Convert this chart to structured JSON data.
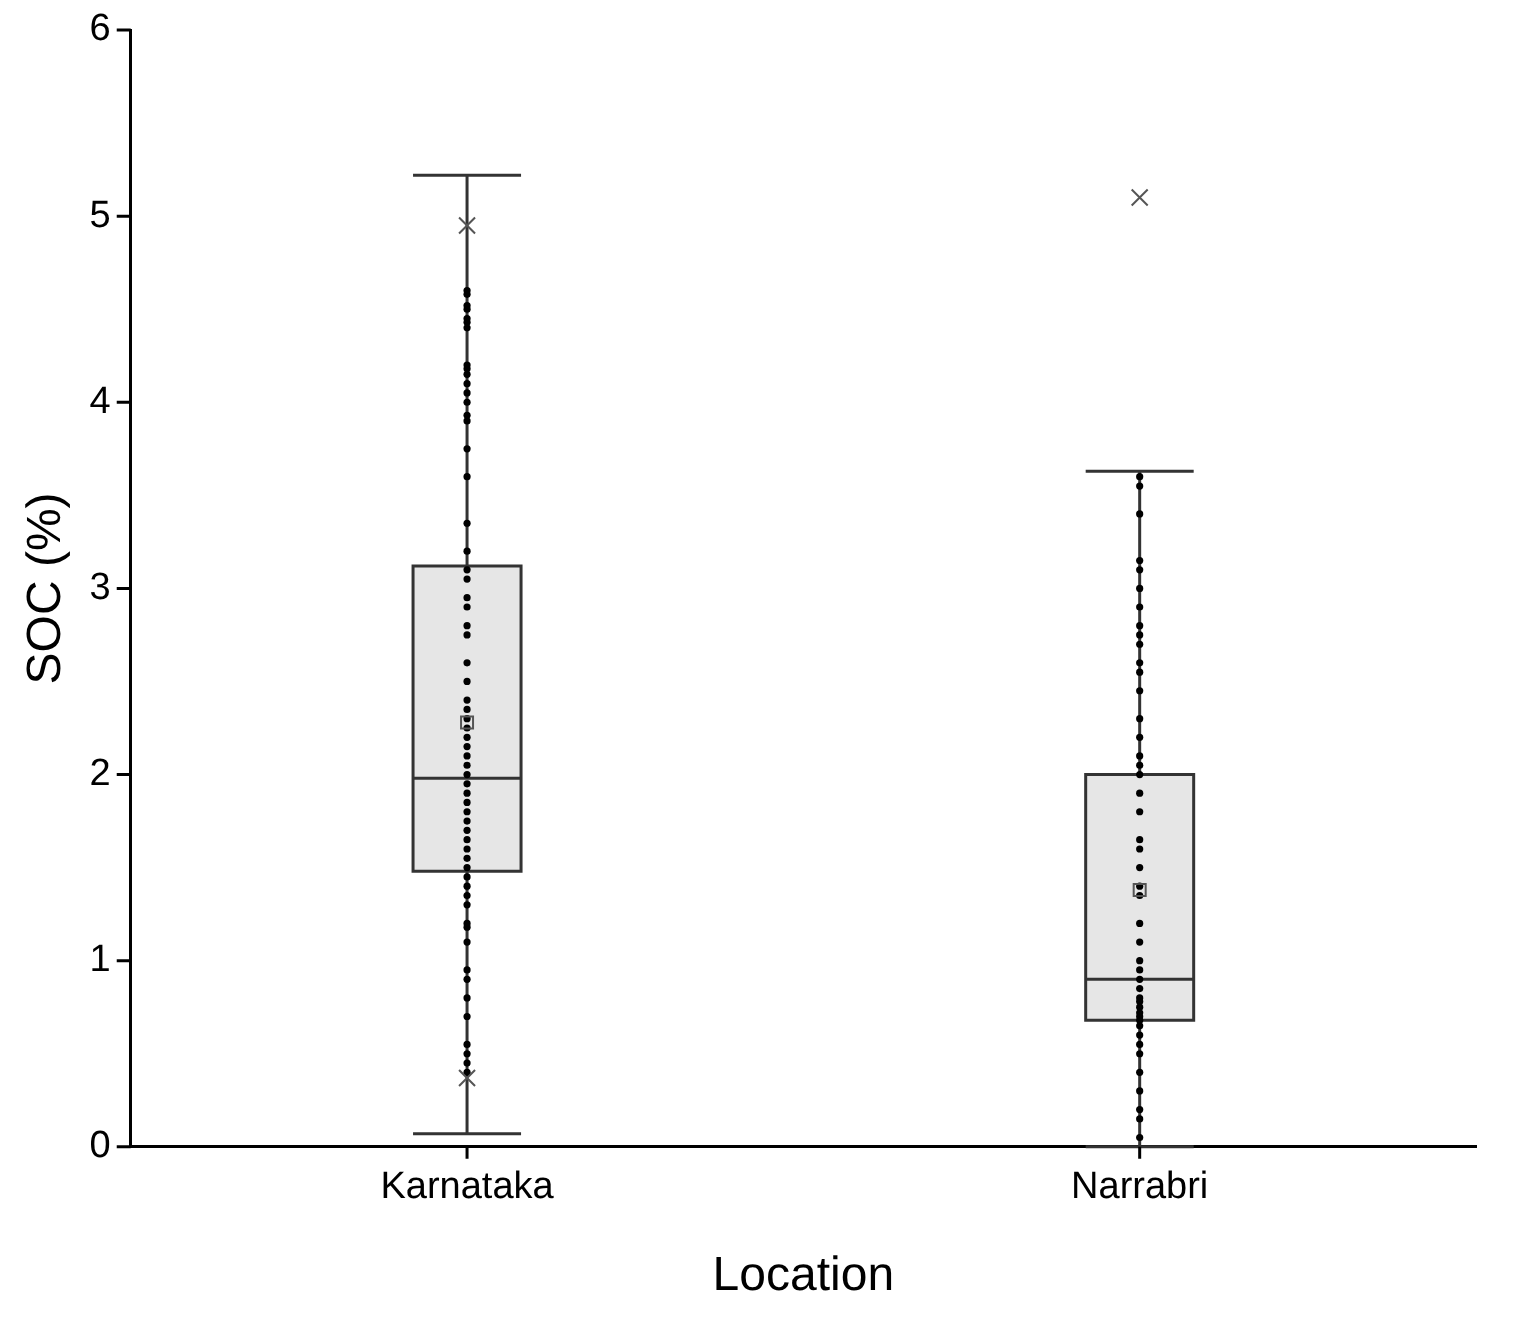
{
  "chart_data": {
    "type": "box",
    "xlabel": "Location",
    "ylabel": "SOC (%)",
    "categories": [
      "Karnataka",
      "Narrabri"
    ],
    "boxes": [
      {
        "low": 0.07,
        "q1": 1.48,
        "median": 1.98,
        "q3": 3.12,
        "high": 5.22,
        "mean": 2.28,
        "outliers": [
          4.95,
          0.37
        ]
      },
      {
        "low": 0.0,
        "q1": 0.68,
        "median": 0.9,
        "q3": 2.0,
        "high": 3.63,
        "mean": 1.38,
        "outliers": [
          5.1
        ]
      }
    ],
    "series": [
      {
        "type": "scatter",
        "color": "#000000",
        "x": [
          "Karnataka",
          "Karnataka",
          "Karnataka",
          "Karnataka",
          "Karnataka",
          "Karnataka",
          "Karnataka",
          "Karnataka",
          "Karnataka",
          "Karnataka",
          "Karnataka",
          "Karnataka",
          "Karnataka",
          "Karnataka",
          "Karnataka",
          "Karnataka",
          "Karnataka",
          "Karnataka",
          "Karnataka",
          "Karnataka",
          "Karnataka",
          "Karnataka",
          "Karnataka",
          "Karnataka",
          "Karnataka",
          "Karnataka",
          "Karnataka",
          "Karnataka",
          "Karnataka",
          "Karnataka",
          "Karnataka",
          "Karnataka",
          "Karnataka",
          "Karnataka",
          "Karnataka",
          "Karnataka",
          "Karnataka",
          "Karnataka",
          "Karnataka",
          "Karnataka",
          "Karnataka",
          "Karnataka",
          "Karnataka",
          "Karnataka",
          "Karnataka",
          "Karnataka",
          "Karnataka",
          "Karnataka",
          "Karnataka",
          "Karnataka",
          "Karnataka",
          "Karnataka",
          "Karnataka",
          "Karnataka",
          "Karnataka",
          "Karnataka",
          "Karnataka",
          "Karnataka",
          "Karnataka",
          "Karnataka",
          "Karnataka"
        ],
        "values": [
          4.6,
          4.58,
          4.52,
          4.5,
          4.45,
          4.43,
          4.4,
          4.2,
          4.18,
          4.15,
          4.1,
          4.05,
          4.0,
          3.93,
          3.9,
          3.75,
          3.6,
          3.35,
          3.2,
          3.1,
          3.05,
          2.95,
          2.9,
          2.8,
          2.75,
          2.6,
          2.5,
          2.4,
          2.35,
          2.3,
          2.25,
          2.2,
          2.15,
          2.1,
          2.05,
          2.0,
          1.95,
          1.9,
          1.85,
          1.8,
          1.75,
          1.7,
          1.65,
          1.6,
          1.55,
          1.5,
          1.45,
          1.4,
          1.35,
          1.3,
          1.2,
          1.18,
          1.1,
          0.95,
          0.9,
          0.8,
          0.7,
          0.55,
          0.5,
          0.45,
          0.4
        ]
      },
      {
        "type": "scatter",
        "color": "#000000",
        "x": [
          "Narrabri",
          "Narrabri",
          "Narrabri",
          "Narrabri",
          "Narrabri",
          "Narrabri",
          "Narrabri",
          "Narrabri",
          "Narrabri",
          "Narrabri",
          "Narrabri",
          "Narrabri",
          "Narrabri",
          "Narrabri",
          "Narrabri",
          "Narrabri",
          "Narrabri",
          "Narrabri",
          "Narrabri",
          "Narrabri",
          "Narrabri",
          "Narrabri",
          "Narrabri",
          "Narrabri",
          "Narrabri",
          "Narrabri",
          "Narrabri",
          "Narrabri",
          "Narrabri",
          "Narrabri",
          "Narrabri",
          "Narrabri",
          "Narrabri",
          "Narrabri",
          "Narrabri",
          "Narrabri",
          "Narrabri",
          "Narrabri",
          "Narrabri",
          "Narrabri",
          "Narrabri",
          "Narrabri",
          "Narrabri",
          "Narrabri",
          "Narrabri",
          "Narrabri"
        ],
        "values": [
          3.6,
          3.55,
          3.4,
          3.15,
          3.1,
          3.0,
          2.9,
          2.8,
          2.75,
          2.7,
          2.6,
          2.55,
          2.45,
          2.3,
          2.2,
          2.1,
          2.05,
          2.0,
          1.9,
          1.8,
          1.65,
          1.6,
          1.5,
          1.4,
          1.35,
          1.2,
          1.1,
          1.0,
          0.95,
          0.9,
          0.85,
          0.8,
          0.78,
          0.75,
          0.72,
          0.7,
          0.68,
          0.65,
          0.6,
          0.55,
          0.5,
          0.4,
          0.3,
          0.2,
          0.15,
          0.05
        ]
      }
    ],
    "marker": "circle",
    "ylim": [
      0,
      6
    ],
    "yticks": [
      0,
      1,
      2,
      3,
      4,
      5,
      6
    ],
    "grid": false,
    "legend": false
  }
}
